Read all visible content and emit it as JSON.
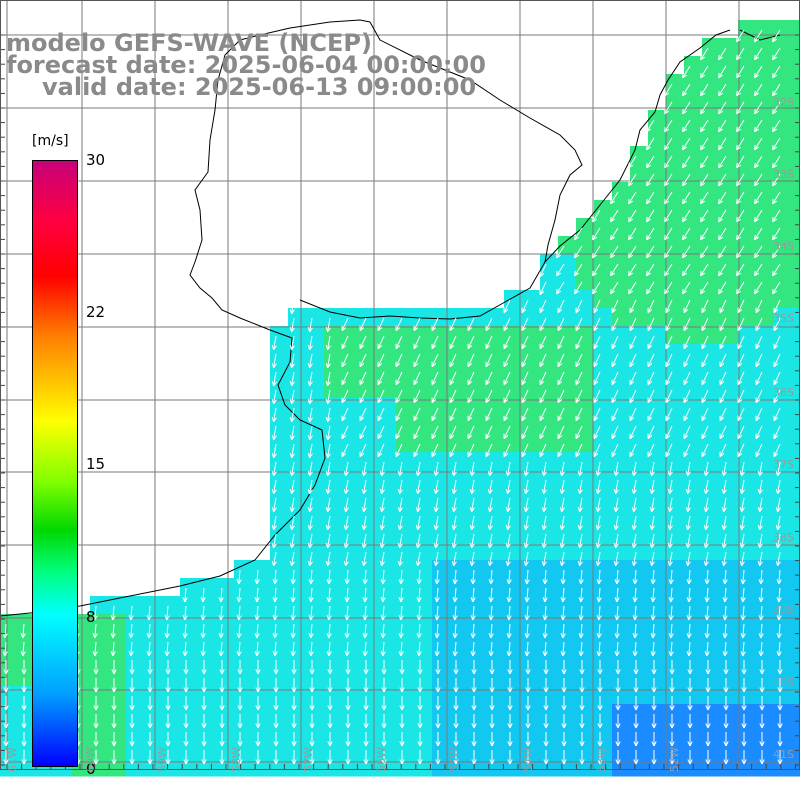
{
  "title": {
    "line1": "modelo GEFS-WAVE (NCEP)",
    "line2": "forecast date: 2025-06-04 00:00:00",
    "line3": "valid date: 2025-06-13 09:00:00"
  },
  "colorbar": {
    "units": "[m/s]",
    "ticks": [
      {
        "value": 30,
        "label": "30"
      },
      {
        "value": 22,
        "label": "22"
      },
      {
        "value": 15,
        "label": "15"
      },
      {
        "value": 8,
        "label": "8"
      },
      {
        "value": 0,
        "label": "0"
      }
    ],
    "colors": [
      "#c8007a",
      "#ff0000",
      "#ff7f00",
      "#ffff00",
      "#00d800",
      "#00ffff",
      "#00a0ff",
      "#0000ff"
    ]
  },
  "map": {
    "lon_range": [
      -62,
      -51
    ],
    "lat_range": [
      -41.5,
      -30.5
    ],
    "lat_labels": [
      "32S",
      "33S",
      "34S",
      "35S",
      "36S",
      "37S",
      "38S",
      "39S",
      "40S",
      "41S"
    ],
    "lon_labels": [
      "61W",
      "60W",
      "59W",
      "58W",
      "57W",
      "56W",
      "55W",
      "54W",
      "53W",
      "52W"
    ],
    "field_colors": {
      "green": "#33e680",
      "cyan": "#1ae6e6",
      "sky": "#12c8f0",
      "blue": "#1a8cff"
    }
  }
}
